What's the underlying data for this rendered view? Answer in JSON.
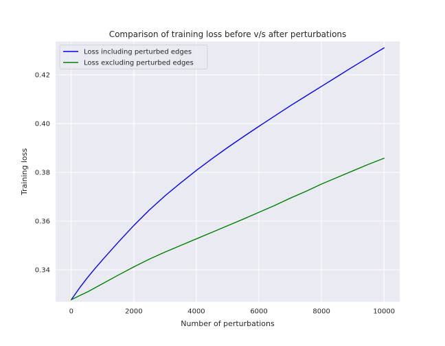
{
  "chart_data": {
    "type": "line",
    "title": "Comparison of training loss before v/s after perturbations",
    "xlabel": "Number of perturbations",
    "ylabel": "Training loss",
    "xlim": [
      -500,
      10500
    ],
    "ylim": [
      0.3269,
      0.4337
    ],
    "xticks": [
      0,
      2000,
      4000,
      6000,
      8000,
      10000
    ],
    "xtick_labels": [
      "0",
      "2000",
      "4000",
      "6000",
      "8000",
      "10000"
    ],
    "yticks": [
      0.34,
      0.36,
      0.38,
      0.4,
      0.42
    ],
    "ytick_labels": [
      "0.34",
      "0.36",
      "0.38",
      "0.40",
      "0.42"
    ],
    "grid": true,
    "legend_position": "top-left",
    "series": [
      {
        "name": "Loss including perturbed edges",
        "color": "#0000ff",
        "x": [
          0,
          250,
          500,
          750,
          1000,
          1500,
          2000,
          2500,
          3000,
          3500,
          4000,
          4500,
          5000,
          5500,
          6000,
          6500,
          7000,
          7500,
          8000,
          8500,
          9000,
          9500,
          10000
        ],
        "y": [
          0.3277,
          0.3323,
          0.3365,
          0.3404,
          0.3441,
          0.3513,
          0.3582,
          0.3646,
          0.3704,
          0.3757,
          0.3808,
          0.3856,
          0.3902,
          0.3946,
          0.3989,
          0.4031,
          0.4073,
          0.4113,
          0.4153,
          0.4193,
          0.4233,
          0.4272,
          0.4311
        ]
      },
      {
        "name": "Loss excluding perturbed edges",
        "color": "#008000",
        "x": [
          0,
          250,
          500,
          1000,
          1500,
          2000,
          2500,
          3000,
          3500,
          4000,
          4500,
          5000,
          5500,
          6000,
          6500,
          7000,
          7500,
          8000,
          8500,
          9000,
          9500,
          10000
        ],
        "y": [
          0.3277,
          0.3293,
          0.3308,
          0.3343,
          0.3378,
          0.3412,
          0.3444,
          0.3473,
          0.35,
          0.3527,
          0.3554,
          0.3581,
          0.3608,
          0.3636,
          0.3664,
          0.3694,
          0.3722,
          0.3752,
          0.3779,
          0.3806,
          0.3833,
          0.3858
        ]
      }
    ]
  }
}
